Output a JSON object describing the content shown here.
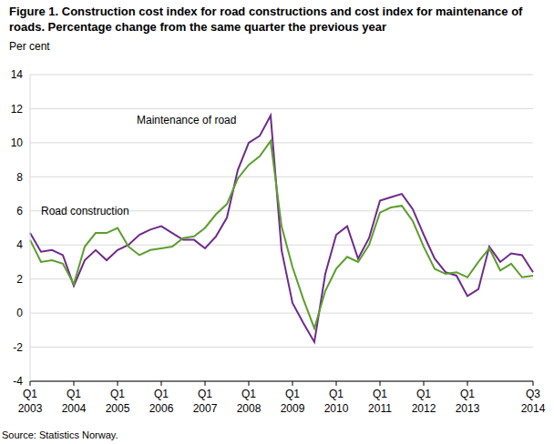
{
  "chart_data": {
    "type": "line",
    "title": "Figure 1. Construction cost index for road constructions and cost index for maintenance of roads. Percentage change from the same quarter the previous year",
    "y_label": "Per cent",
    "source": "Source: Statistics Norway.",
    "categories": [
      "Q1 2003",
      null,
      null,
      null,
      "Q1 2004",
      null,
      null,
      null,
      "Q1 2005",
      null,
      null,
      null,
      "Q1 2006",
      null,
      null,
      null,
      "Q1 2007",
      null,
      null,
      null,
      "Q1 2008",
      null,
      null,
      null,
      "Q1 2009",
      null,
      null,
      null,
      "Q1 2010",
      null,
      null,
      null,
      "Q1 2011",
      null,
      null,
      null,
      "Q1 2012",
      null,
      null,
      null,
      "Q1 2013",
      null,
      null,
      null,
      null,
      null,
      "Q3 2014"
    ],
    "series": [
      {
        "name": "Maintenance of road",
        "color": "#6e2a8d",
        "values": [
          4.7,
          3.6,
          3.7,
          3.4,
          1.6,
          3.1,
          3.7,
          3.1,
          3.7,
          4.0,
          4.6,
          4.9,
          5.1,
          4.7,
          4.3,
          4.3,
          3.8,
          4.5,
          5.6,
          8.4,
          10.0,
          10.4,
          11.6,
          3.7,
          0.6,
          -0.6,
          -1.7,
          2.3,
          4.6,
          5.1,
          3.2,
          4.4,
          6.6,
          6.8,
          7.0,
          6.1,
          4.6,
          3.2,
          2.4,
          2.2,
          1.0,
          1.4,
          3.9,
          3.0,
          3.5,
          3.4,
          2.4
        ]
      },
      {
        "name": "Road construction",
        "color": "#5c9e2d",
        "values": [
          4.3,
          3.0,
          3.1,
          2.9,
          1.7,
          3.9,
          4.7,
          4.7,
          5.0,
          3.9,
          3.4,
          3.7,
          3.8,
          3.9,
          4.4,
          4.5,
          5.0,
          5.8,
          6.4,
          7.9,
          8.7,
          9.2,
          10.1,
          5.1,
          2.7,
          0.8,
          -0.9,
          1.3,
          2.6,
          3.3,
          3.0,
          4.0,
          5.9,
          6.2,
          6.3,
          5.4,
          3.9,
          2.6,
          2.3,
          2.4,
          2.1,
          3.0,
          3.8,
          2.5,
          2.9,
          2.1,
          2.2
        ]
      }
    ],
    "ylim": [
      -4,
      14
    ],
    "yticks": [
      -4,
      -2,
      0,
      2,
      4,
      6,
      8,
      10,
      12,
      14
    ],
    "grid": true
  }
}
